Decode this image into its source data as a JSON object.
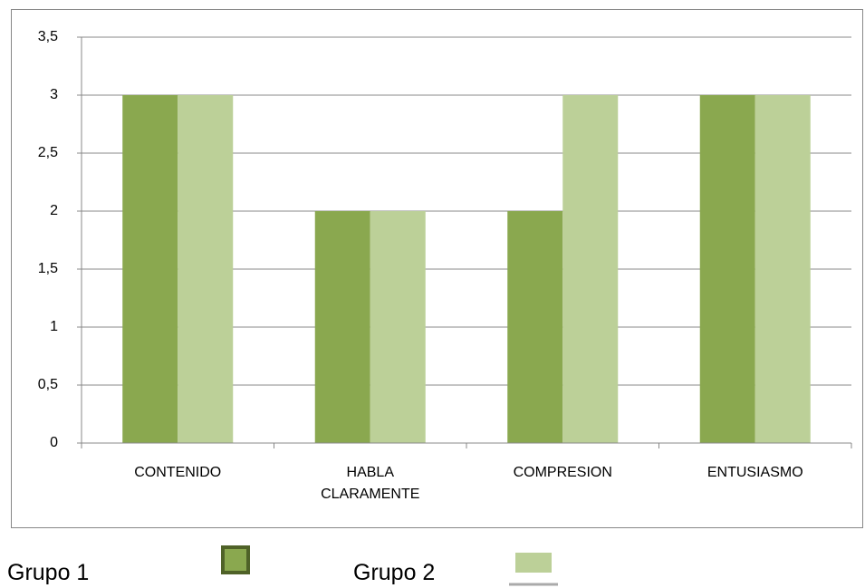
{
  "chart_data": {
    "type": "bar",
    "categories": [
      "CONTENIDO",
      "HABLA CLARAMENTE",
      "COMPRESION",
      "ENTUSIASMO"
    ],
    "series": [
      {
        "name": "Grupo 1",
        "color": "#8aa84f",
        "values": [
          3,
          2,
          2,
          3
        ]
      },
      {
        "name": "Grupo 2",
        "color": "#bcd098",
        "values": [
          3,
          2,
          3,
          3
        ]
      }
    ],
    "ylim": [
      0,
      3.5
    ],
    "yticks": [
      0,
      {
        "value": 0.5,
        "label": "0,5"
      },
      1,
      {
        "value": 1.5,
        "label": "1,5"
      },
      2,
      {
        "value": 2.5,
        "label": "2,5"
      },
      3,
      {
        "value": 3.5,
        "label": "3,5"
      }
    ],
    "grid": true
  }
}
